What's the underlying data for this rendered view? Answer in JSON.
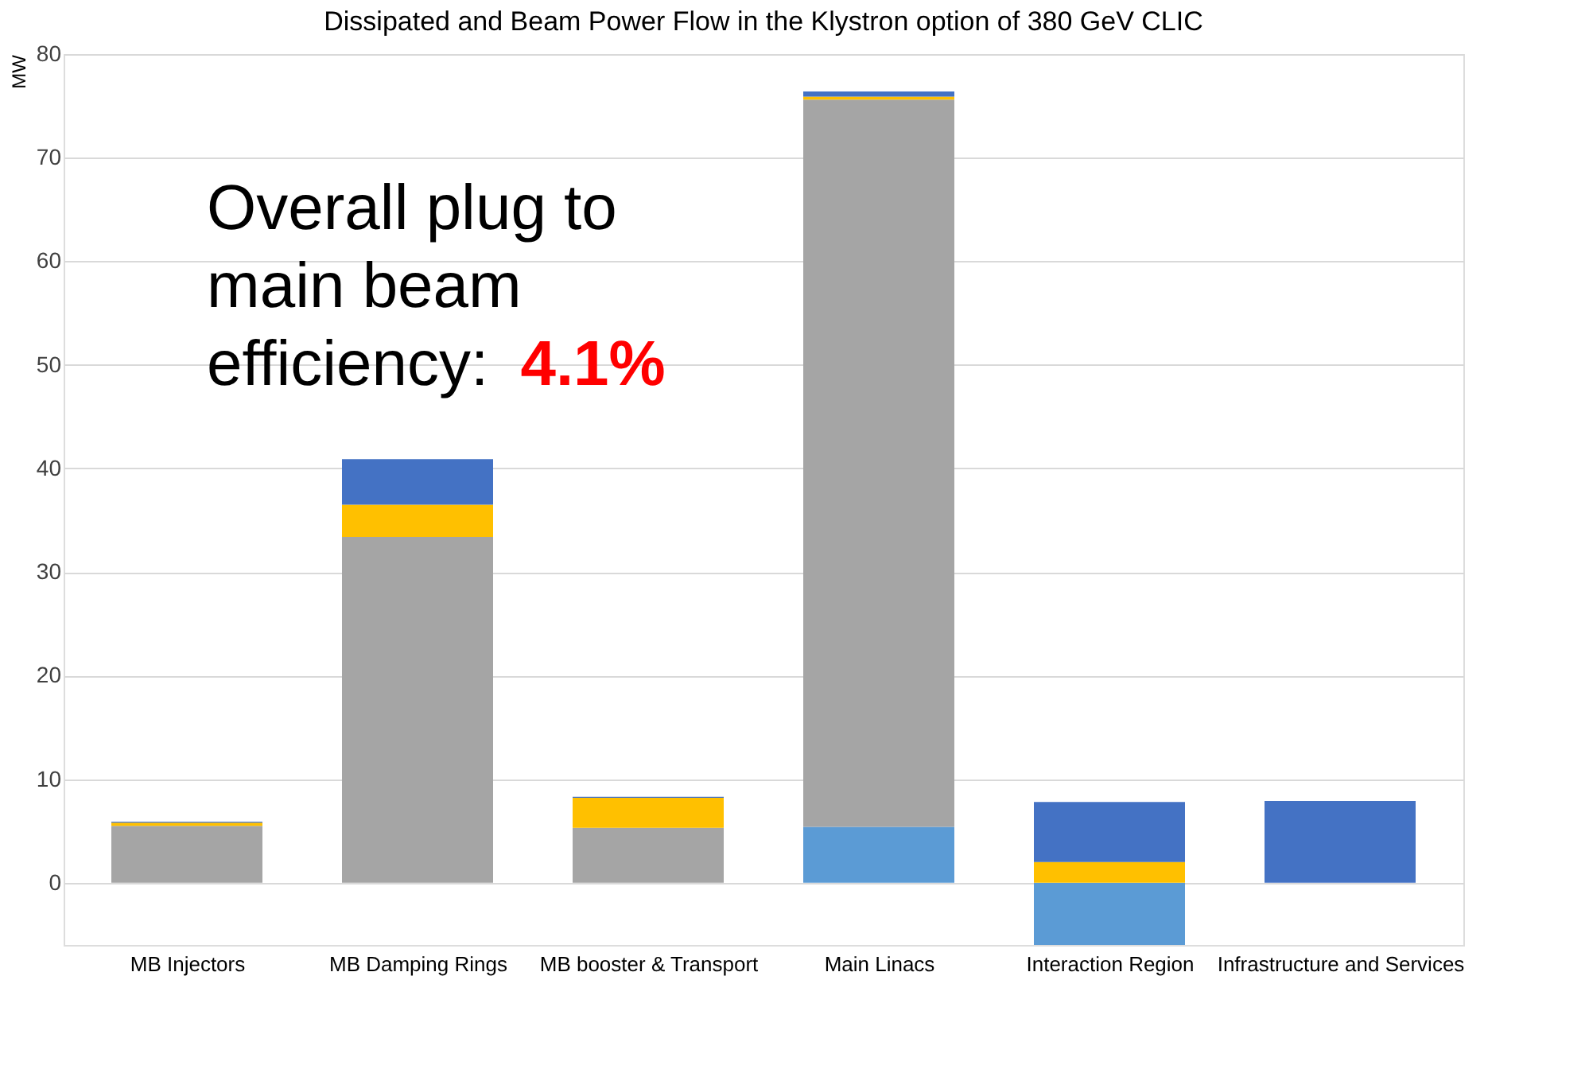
{
  "chart_data": {
    "type": "bar",
    "title": "Dissipated and Beam Power Flow in the Klystron option of 380 GeV CLIC",
    "ylabel": "MW",
    "categories": [
      "MB Injectors",
      "MB Damping Rings",
      "MB booster & Transport",
      "Main Linacs",
      "Interaction Region",
      "Infrastructure and Services"
    ],
    "stacked": true,
    "series": [
      {
        "color": "#5b9bd5",
        "values": [
          null,
          null,
          null,
          5.4,
          -6.0,
          null
        ]
      },
      {
        "color": "#a5a5a5",
        "values": [
          5.5,
          33.4,
          5.3,
          70.2,
          null,
          null
        ]
      },
      {
        "color": "#ffc000",
        "values": [
          0.3,
          3.1,
          2.9,
          0.3,
          2.0,
          null
        ]
      },
      {
        "color": "#4472c4",
        "values": [
          0.1,
          4.4,
          0.1,
          0.5,
          5.8,
          7.9
        ]
      }
    ],
    "ylim": [
      -6,
      80
    ],
    "yticks": [
      0,
      10,
      20,
      30,
      40,
      50,
      60,
      70,
      80
    ],
    "grid": "y",
    "annotations": [
      "Overall plug to main beam efficiency:",
      "4.1%"
    ]
  }
}
